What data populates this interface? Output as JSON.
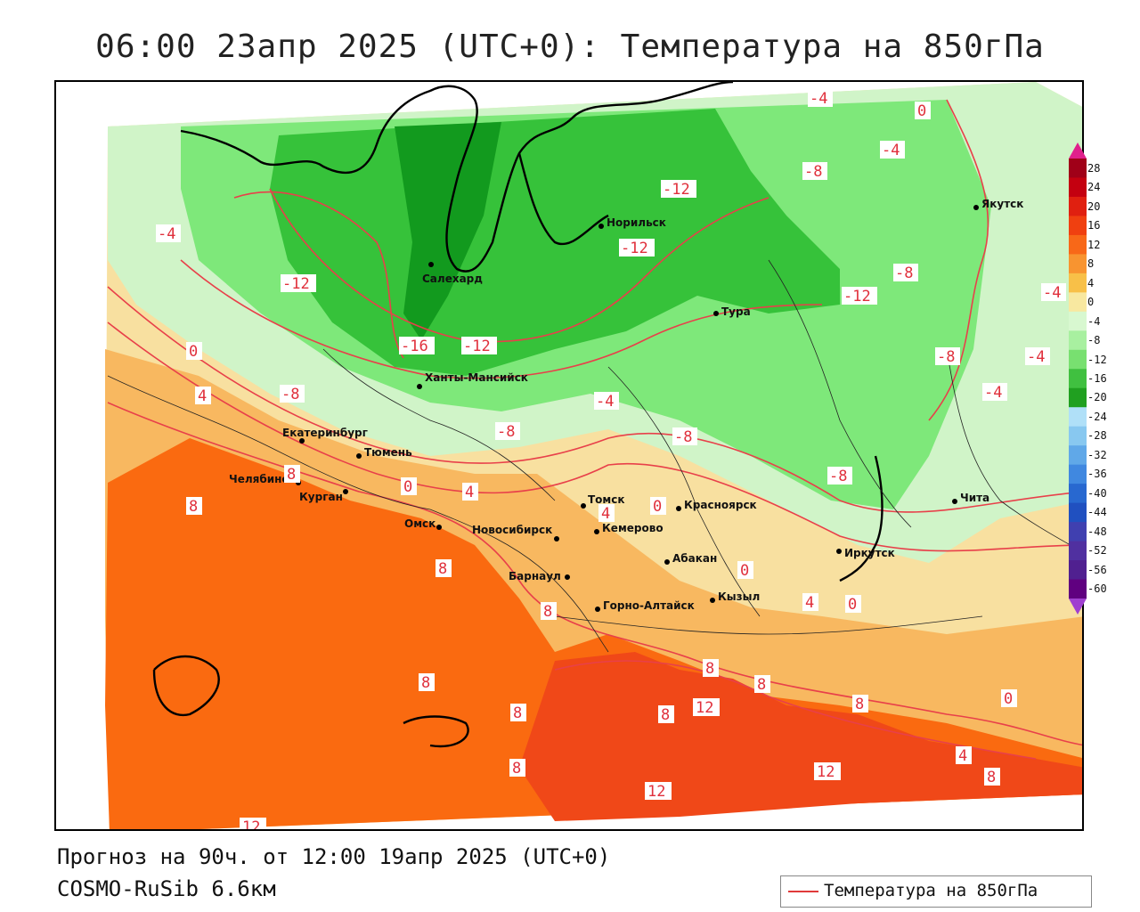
{
  "title": "06:00 23апр 2025 (UTC+0): Температура на 850гПа",
  "footer": {
    "forecast": "Прогноз на 90ч. от 12:00 19апр 2025 (UTC+0)",
    "model": "COSMO-RuSib 6.6км"
  },
  "legend": {
    "label": "Температура на 850гПа",
    "line_color": "#e03a3a"
  },
  "colorbar": {
    "ticks": [
      "28",
      "24",
      "20",
      "16",
      "12",
      "8",
      "4",
      "0",
      "-4",
      "-8",
      "-12",
      "-16",
      "-20",
      "-24",
      "-28",
      "-32",
      "-36",
      "-40",
      "-44",
      "-48",
      "-52",
      "-56",
      "-60"
    ],
    "colors": [
      "#a00018",
      "#c40010",
      "#e02010",
      "#f04010",
      "#f86818",
      "#f89430",
      "#f8c048",
      "#f8e8a0",
      "#d8f8d0",
      "#a8f0a0",
      "#78e070",
      "#40c040",
      "#20a020",
      "#b0e0f8",
      "#88c8f0",
      "#60a8e8",
      "#4088e0",
      "#2868d0",
      "#2050c0",
      "#4040b0",
      "#5030a0",
      "#502090",
      "#600080"
    ],
    "top_arrow_color": "#e0208c",
    "bottom_arrow_color": "#a040d0"
  },
  "cities": [
    {
      "name": "Салехард"
    },
    {
      "name": "Норильск"
    },
    {
      "name": "Тура"
    },
    {
      "name": "Якутск"
    },
    {
      "name": "Ханты-Мансийск"
    },
    {
      "name": "Екатеринбург"
    },
    {
      "name": "Тюмень"
    },
    {
      "name": "Челябинск"
    },
    {
      "name": "Курган"
    },
    {
      "name": "Омск"
    },
    {
      "name": "Новосибирск"
    },
    {
      "name": "Томск"
    },
    {
      "name": "Кемерово"
    },
    {
      "name": "Красноярск"
    },
    {
      "name": "Абакан"
    },
    {
      "name": "Барнаул"
    },
    {
      "name": "Горно-Алтайск"
    },
    {
      "name": "Кызыл"
    },
    {
      "name": "Иркутск"
    },
    {
      "name": "Чита"
    }
  ],
  "isotherm_labels": [
    "-4",
    "0",
    "-4",
    "-8",
    "-12",
    "-12",
    "-4",
    "-12",
    "-12",
    "-8",
    "-16",
    "-12",
    "-8",
    "0",
    "4",
    "-8",
    "-4",
    "-8",
    "-8",
    "-4",
    "-4",
    "-4",
    "-8",
    "8",
    "8",
    "0",
    "4",
    "4",
    "0",
    "8",
    "8",
    "0",
    "4",
    "0",
    "8",
    "8",
    "8",
    "12",
    "8",
    "8",
    "8",
    "0",
    "12",
    "8",
    "12",
    "4",
    "8",
    "12"
  ],
  "colors": {
    "hot_red": "#f04818",
    "orange": "#fa6a10",
    "light_orange": "#f8a440",
    "yellow": "#f8e0a0",
    "pale_green": "#d0f4c8",
    "light_green": "#7ee87a",
    "green": "#36c23a",
    "dark_green": "#129a1e",
    "isotherm": "#e8404a"
  }
}
